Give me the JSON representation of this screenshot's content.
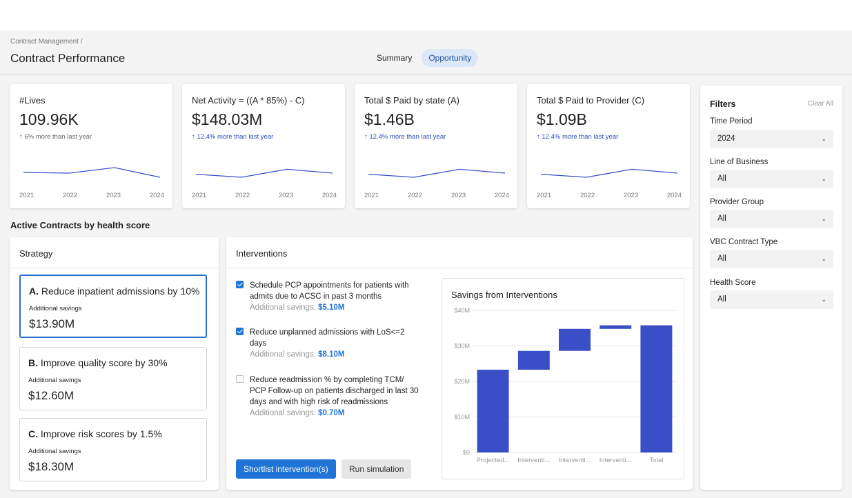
{
  "header": {
    "breadcrumb": "Contract Management /",
    "title": "Contract Performance",
    "tabs": [
      {
        "label": "Summary",
        "active": false
      },
      {
        "label": "Opportunity",
        "active": true
      }
    ]
  },
  "kpis": [
    {
      "label": "#Lives",
      "value": "109.96K",
      "delta": "↑  6% more than last year",
      "delta_color": "#666666",
      "years": [
        "2021",
        "2022",
        "2023",
        "2024"
      ],
      "trend": [
        0.55,
        0.5,
        0.9,
        0.2
      ]
    },
    {
      "label": "Net Activity = ((A * 85%) - C)",
      "value": "$148.03M",
      "delta": "↑  12.4% more than last year",
      "delta_color": "#2f4bbf",
      "years": [
        "2021",
        "2022",
        "2023",
        "2024"
      ],
      "trend": [
        0.42,
        0.2,
        0.78,
        0.5
      ]
    },
    {
      "label": "Total $ Paid by state (A)",
      "value": "$1.46B",
      "delta": "↑  12.4% more than last year",
      "delta_color": "#2f4bbf",
      "years": [
        "2021",
        "2022",
        "2023",
        "2024"
      ],
      "trend": [
        0.42,
        0.2,
        0.78,
        0.5
      ]
    },
    {
      "label": "Total $ Paid to Provider  (C)",
      "value": "$1.09B",
      "delta": "↑  12.4% more than last year",
      "delta_color": "#2f4bbf",
      "years": [
        "2021",
        "2022",
        "2023",
        "2024"
      ],
      "trend": [
        0.42,
        0.2,
        0.78,
        0.5
      ]
    }
  ],
  "section_title": "Active Contracts by health score",
  "strategy": {
    "heading": "Strategy",
    "items": [
      {
        "letter": "A.",
        "label": "Reduce inpatient admissions by 10%",
        "sub": "Additional savings",
        "amount": "$13.90M",
        "selected": true
      },
      {
        "letter": "B.",
        "label": "Improve quality score by 30%",
        "sub": "Additional savings",
        "amount": "$12.60M",
        "selected": false
      },
      {
        "letter": "C.",
        "label": "Improve risk scores by 1.5%",
        "sub": "Additional savings",
        "amount": "$18.30M",
        "selected": false
      }
    ]
  },
  "interventions": {
    "heading": "Interventions",
    "items": [
      {
        "text": "Schedule PCP appointments for patients with admits due to ACSC in past 3 months",
        "savings_label": "Additional savings: ",
        "savings": "$5.10M",
        "checked": true
      },
      {
        "text": "Reduce unplanned admissions with LoS<=2 days",
        "savings_label": "Additional savings: ",
        "savings": "$8.10M",
        "checked": true
      },
      {
        "text": "Reduce readmission % by completing TCM/ PCP Follow-up on patients discharged in last 30 days and with high risk of readmissions",
        "savings_label": "Additional savings: ",
        "savings": "$0.70M",
        "checked": false
      }
    ],
    "primary_button": "Shortlist intervention(s)",
    "secondary_button": "Run simulation"
  },
  "chart_data": {
    "type": "bar",
    "subtype": "waterfall",
    "title": "Savings from Interventions",
    "categories": [
      "Projected...",
      "Interventi...",
      "Interventi...",
      "Interventi...",
      "Total"
    ],
    "values": [
      23.3,
      5.3,
      6.2,
      1.0,
      35.8
    ],
    "bar_ranges": [
      [
        0,
        23.3
      ],
      [
        23.3,
        28.6
      ],
      [
        28.6,
        34.8
      ],
      [
        34.8,
        35.8
      ],
      [
        0,
        35.8
      ]
    ],
    "y_ticks": [
      "$0",
      "$10M",
      "$20M",
      "$30M",
      "$40M"
    ],
    "ylim": [
      0,
      40
    ],
    "color": "#3a4fc7",
    "grid": true
  },
  "filters": {
    "title": "Filters",
    "clear_label": "Clear All",
    "fields": [
      {
        "label": "Time Period",
        "value": "2024"
      },
      {
        "label": "Line of Business",
        "value": "All"
      },
      {
        "label": "Provider Group",
        "value": "All"
      },
      {
        "label": "VBC Contract Type",
        "value": "All"
      },
      {
        "label": "Health Score",
        "value": "All"
      }
    ]
  },
  "colors": {
    "accent": "#1f74d6",
    "trend_line": "#3a4fc7",
    "tab_active_bg": "#dbe8f7"
  }
}
